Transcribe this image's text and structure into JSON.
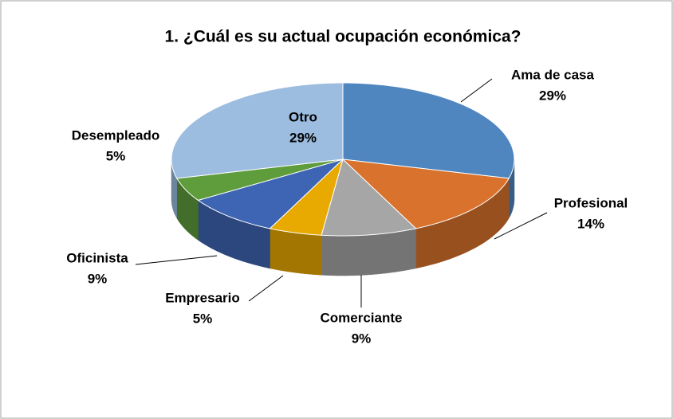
{
  "chart_data": {
    "type": "pie",
    "title": "1. ¿Cuál es su actual ocupación económica?",
    "categories": [
      "Ama de casa",
      "Profesional",
      "Comerciante",
      "Empresario",
      "Oficinista",
      "Desempleado",
      "Otro"
    ],
    "values": [
      29,
      14,
      9,
      5,
      9,
      5,
      29
    ],
    "value_labels": [
      "29%",
      "14%",
      "9%",
      "5%",
      "9%",
      "5%",
      "29%"
    ],
    "colors": [
      "#4f86c0",
      "#d9722c",
      "#a6a6a6",
      "#e8a900",
      "#3d65b3",
      "#5e9c3c",
      "#9cbce0"
    ]
  }
}
